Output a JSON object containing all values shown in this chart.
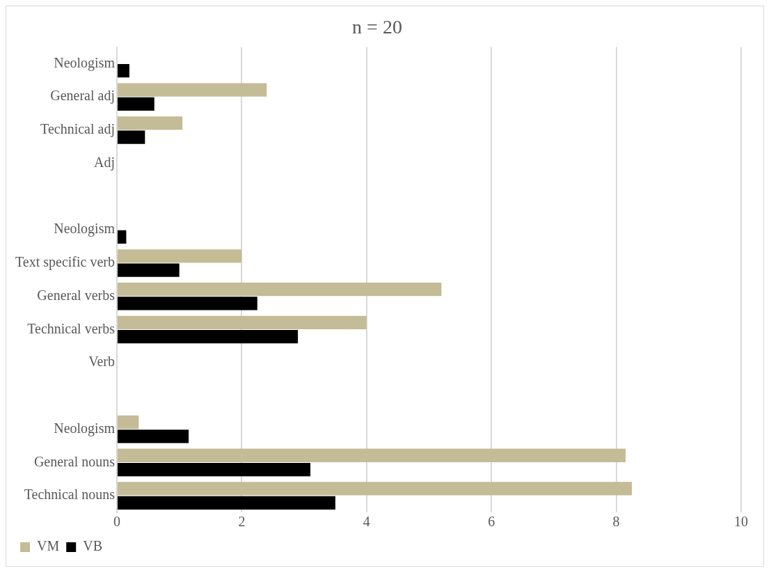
{
  "chart_data": {
    "type": "bar",
    "orientation": "horizontal",
    "title": "n = 20",
    "categories": [
      "Neologism",
      "General adj",
      "Technical adj",
      "Adj",
      null,
      "Neologism",
      "Text specific verb",
      "General verbs",
      "Technical verbs",
      "Verb",
      null,
      "Neologism",
      "General nouns",
      "Technical nouns"
    ],
    "series": [
      {
        "name": "VM",
        "color": "#c4bc96",
        "values": [
          0,
          2.4,
          1.05,
          0,
          null,
          0,
          2.0,
          5.2,
          4.0,
          0,
          null,
          0.35,
          8.15,
          8.25
        ]
      },
      {
        "name": "VB",
        "color": "#000000",
        "values": [
          0.2,
          0.6,
          0.45,
          0,
          null,
          0.15,
          1.0,
          2.25,
          2.9,
          0,
          null,
          1.15,
          3.1,
          3.5
        ]
      }
    ],
    "xlim": [
      0,
      10
    ],
    "xticks": [
      0,
      2,
      4,
      6,
      8,
      10
    ],
    "grid": "x",
    "legend": "bottom left"
  }
}
